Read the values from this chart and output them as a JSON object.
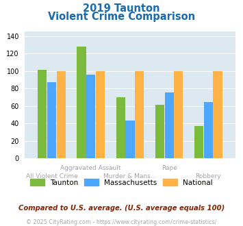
{
  "title_line1": "2019 Taunton",
  "title_line2": "Violent Crime Comparison",
  "categories": [
    "All Violent Crime",
    "Aggravated Assault",
    "Murder & Mans...",
    "Rape",
    "Robbery"
  ],
  "taunton": [
    101,
    128,
    70,
    61,
    37
  ],
  "massachusetts": [
    87,
    96,
    43,
    75,
    64
  ],
  "national": [
    100,
    100,
    100,
    100,
    100
  ],
  "color_taunton": "#7cba3d",
  "color_massachusetts": "#4da6ff",
  "color_national": "#ffb347",
  "ylim": [
    0,
    145
  ],
  "yticks": [
    0,
    20,
    40,
    60,
    80,
    100,
    120,
    140
  ],
  "bg_color": "#dce9f0",
  "legend_labels": [
    "Taunton",
    "Massachusetts",
    "National"
  ],
  "footnote1": "Compared to U.S. average. (U.S. average equals 100)",
  "footnote2": "© 2025 CityRating.com - https://www.cityrating.com/crime-statistics/",
  "title_color": "#1a6aaf",
  "footnote1_color": "#882200",
  "footnote2_color": "#aaaaaa",
  "label_color": "#aaa0b0"
}
